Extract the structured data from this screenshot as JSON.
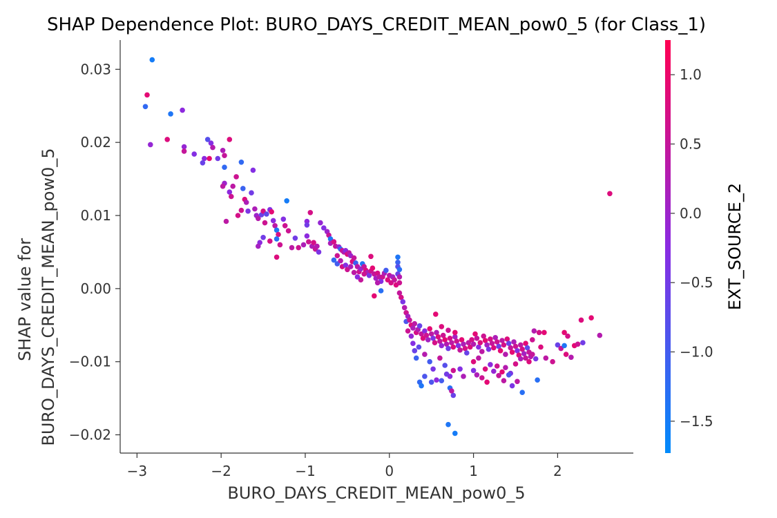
{
  "chart_data": {
    "type": "scatter",
    "title": "SHAP Dependence Plot: BURO_DAYS_CREDIT_MEAN_pow0_5 (for Class_1)",
    "xlabel": "BURO_DAYS_CREDIT_MEAN_pow0_5",
    "ylabel_lines": [
      "SHAP value for",
      "BURO_DAYS_CREDIT_MEAN_pow0_5"
    ],
    "xlim": [
      -3.2,
      2.9
    ],
    "ylim": [
      -0.0225,
      0.034
    ],
    "x_ticks": [
      -3,
      -2,
      -1,
      0,
      1,
      2
    ],
    "x_tick_labels": [
      "−3",
      "−2",
      "−1",
      "0",
      "1",
      "2"
    ],
    "y_ticks": [
      0.03,
      0.02,
      0.01,
      0.0,
      -0.01,
      -0.02
    ],
    "y_tick_labels": [
      "0.03",
      "0.02",
      "0.01",
      "0.00",
      "−0.01",
      "−0.02"
    ],
    "colorbar": {
      "label": "EXT_SOURCE_2",
      "range": [
        -1.73,
        1.25
      ],
      "ticks": [
        1.0,
        0.5,
        0.0,
        -0.5,
        -1.0,
        -1.5
      ],
      "tick_labels": [
        "1.0",
        "0.5",
        "0.0",
        "−0.5",
        "−1.0",
        "−1.5"
      ],
      "colormap": [
        "#008bfb",
        "#8a2be2",
        "#ff0052"
      ]
    },
    "grid": false,
    "points": [
      [
        -2.82,
        0.0313,
        -1.5
      ],
      [
        -2.88,
        0.0265,
        0.9
      ],
      [
        -2.9,
        0.0249,
        -1.2
      ],
      [
        -2.6,
        0.0239,
        -1.4
      ],
      [
        -2.46,
        0.0244,
        -0.2
      ],
      [
        -2.84,
        0.0197,
        -0.1
      ],
      [
        -2.64,
        0.0204,
        0.8
      ],
      [
        -2.44,
        0.0194,
        -0.1
      ],
      [
        -2.44,
        0.0188,
        0.5
      ],
      [
        -2.32,
        0.0184,
        -0.3
      ],
      [
        -2.2,
        0.0178,
        -0.2
      ],
      [
        -2.22,
        0.0172,
        -0.6
      ],
      [
        -2.16,
        0.0204,
        -0.8
      ],
      [
        -2.12,
        0.0199,
        -0.3
      ],
      [
        -2.1,
        0.0193,
        0.3
      ],
      [
        -2.14,
        0.0178,
        0.9
      ],
      [
        -2.04,
        0.0178,
        -0.5
      ],
      [
        -1.98,
        0.0189,
        0.2
      ],
      [
        -1.96,
        0.0182,
        0.5
      ],
      [
        -1.96,
        0.0166,
        -1.2
      ],
      [
        -1.9,
        0.0204,
        0.8
      ],
      [
        -1.76,
        0.0173,
        -1.2
      ],
      [
        -1.62,
        0.0162,
        -0.3
      ],
      [
        -1.82,
        0.0153,
        0.6
      ],
      [
        -1.96,
        0.0144,
        0.0
      ],
      [
        -1.98,
        0.014,
        0.4
      ],
      [
        -1.86,
        0.014,
        0.4
      ],
      [
        -1.9,
        0.0132,
        -0.2
      ],
      [
        -1.88,
        0.0126,
        0.6
      ],
      [
        -1.74,
        0.0137,
        -1.1
      ],
      [
        -1.64,
        0.0131,
        -0.5
      ],
      [
        -1.72,
        0.0122,
        0.8
      ],
      [
        -1.7,
        0.0118,
        0.2
      ],
      [
        -1.76,
        0.0107,
        0.6
      ],
      [
        -1.8,
        0.01,
        0.7
      ],
      [
        -1.94,
        0.0092,
        0.4
      ],
      [
        -1.68,
        0.0106,
        -0.4
      ],
      [
        -1.6,
        0.0109,
        0.2
      ],
      [
        -1.58,
        0.01,
        0.0
      ],
      [
        -1.52,
        0.0101,
        -0.6
      ],
      [
        -1.5,
        0.0106,
        0.7
      ],
      [
        -1.46,
        0.0102,
        -0.7
      ],
      [
        -1.42,
        0.0108,
        -0.3
      ],
      [
        -1.4,
        0.0105,
        0.9
      ],
      [
        -1.56,
        0.0096,
        0.3
      ],
      [
        -1.48,
        0.009,
        0.6
      ],
      [
        -1.38,
        0.0093,
        -0.2
      ],
      [
        -1.36,
        0.0086,
        0.4
      ],
      [
        -1.34,
        0.008,
        -1.4
      ],
      [
        -1.22,
        0.012,
        -1.5
      ],
      [
        -1.26,
        0.0095,
        -0.3
      ],
      [
        -1.24,
        0.0086,
        0.6
      ],
      [
        -1.2,
        0.0079,
        0.6
      ],
      [
        -1.32,
        0.0074,
        0.7
      ],
      [
        -1.34,
        0.0068,
        -1.3
      ],
      [
        -1.42,
        0.0065,
        0.7
      ],
      [
        -1.5,
        0.007,
        -0.5
      ],
      [
        -1.54,
        0.0063,
        -0.2
      ],
      [
        -1.56,
        0.0058,
        0.1
      ],
      [
        -1.3,
        0.006,
        0.6
      ],
      [
        -1.34,
        0.0043,
        0.8
      ],
      [
        -1.16,
        0.0056,
        0.4
      ],
      [
        -1.12,
        0.0069,
        -0.5
      ],
      [
        -1.08,
        0.0056,
        0.6
      ],
      [
        -1.02,
        0.006,
        0.2
      ],
      [
        -0.98,
        0.0072,
        -0.2
      ],
      [
        -0.96,
        0.0064,
        0.6
      ],
      [
        -0.92,
        0.0058,
        0.2
      ],
      [
        -0.9,
        0.0063,
        0.7
      ],
      [
        -0.88,
        0.0054,
        0.5
      ],
      [
        -0.86,
        0.0058,
        0.3
      ],
      [
        -0.84,
        0.005,
        -0.4
      ],
      [
        -0.98,
        0.0092,
        -0.2
      ],
      [
        -0.98,
        0.0087,
        -0.5
      ],
      [
        -0.94,
        0.0104,
        0.7
      ],
      [
        -0.82,
        0.009,
        -0.1
      ],
      [
        -0.78,
        0.0083,
        -0.3
      ],
      [
        -0.74,
        0.0078,
        0.0
      ],
      [
        -0.72,
        0.0073,
        0.5
      ],
      [
        -0.7,
        0.0068,
        -1.4
      ],
      [
        -0.7,
        0.0062,
        0.2
      ],
      [
        -0.66,
        0.0064,
        0.7
      ],
      [
        -0.64,
        0.0058,
        0.5
      ],
      [
        -0.6,
        0.0057,
        -0.1
      ],
      [
        -0.58,
        0.0054,
        -1.2
      ],
      [
        -0.56,
        0.0052,
        0.6
      ],
      [
        -0.54,
        0.005,
        0.3
      ],
      [
        -0.52,
        0.0052,
        -0.2
      ],
      [
        -0.5,
        0.0047,
        0.8
      ],
      [
        -0.48,
        0.0049,
        0.4
      ],
      [
        -0.46,
        0.0045,
        0.0
      ],
      [
        -0.62,
        0.0045,
        0.6
      ],
      [
        -0.66,
        0.0039,
        -1.2
      ],
      [
        -0.62,
        0.0034,
        -1.0
      ],
      [
        -0.58,
        0.0038,
        0.3
      ],
      [
        -0.56,
        0.003,
        0.7
      ],
      [
        -0.52,
        0.0032,
        -0.3
      ],
      [
        -0.5,
        0.0026,
        0.6
      ],
      [
        -0.46,
        0.003,
        0.2
      ],
      [
        -0.44,
        0.0037,
        0.8
      ],
      [
        -0.42,
        0.0042,
        0.5
      ],
      [
        -0.4,
        0.0035,
        -1.1
      ],
      [
        -0.38,
        0.003,
        0.4
      ],
      [
        -0.36,
        0.0023,
        0.6
      ],
      [
        -0.34,
        0.0027,
        0.0
      ],
      [
        -0.32,
        0.0034,
        -1.4
      ],
      [
        -0.3,
        0.003,
        0.5
      ],
      [
        -0.28,
        0.0025,
        0.8
      ],
      [
        -0.26,
        0.0022,
        0.2
      ],
      [
        -0.24,
        0.0018,
        -0.4
      ],
      [
        -0.22,
        0.0024,
        0.6
      ],
      [
        -0.2,
        0.0028,
        0.9
      ],
      [
        -0.18,
        0.002,
        0.5
      ],
      [
        -0.16,
        0.0014,
        0.1
      ],
      [
        -0.14,
        0.0021,
        0.7
      ],
      [
        -0.12,
        0.0016,
        0.4
      ],
      [
        -0.1,
        0.001,
        -0.3
      ],
      [
        -0.08,
        0.0016,
        0.6
      ],
      [
        -0.06,
        0.0021,
        0.2
      ],
      [
        -0.04,
        0.0025,
        -1.0
      ],
      [
        -0.02,
        0.0012,
        0.8
      ],
      [
        0.0,
        0.0018,
        0.4
      ],
      [
        0.02,
        0.0008,
        0.7
      ],
      [
        0.04,
        0.0016,
        0.1
      ],
      [
        0.06,
        0.0012,
        0.5
      ],
      [
        0.08,
        0.0005,
        0.8
      ],
      [
        0.1,
        0.0043,
        -1.4
      ],
      [
        0.1,
        0.0036,
        -1.1
      ],
      [
        0.1,
        0.003,
        -0.8
      ],
      [
        0.12,
        0.0026,
        -1.3
      ],
      [
        0.1,
        0.002,
        -0.6
      ],
      [
        0.12,
        0.0016,
        0.3
      ],
      [
        0.12,
        0.0008,
        0.6
      ],
      [
        -0.22,
        0.0044,
        0.8
      ],
      [
        -0.14,
        0.0008,
        0.3
      ],
      [
        -0.18,
        -0.001,
        0.9
      ],
      [
        -0.1,
        -0.0003,
        -1.3
      ],
      [
        -0.3,
        0.002,
        0.6
      ],
      [
        -0.34,
        0.0012,
        0.5
      ],
      [
        -0.38,
        0.0016,
        -0.2
      ],
      [
        -0.42,
        0.0022,
        0.4
      ],
      [
        0.12,
        -0.0006,
        0.5
      ],
      [
        0.14,
        -0.0012,
        0.7
      ],
      [
        0.16,
        -0.0018,
        -0.4
      ],
      [
        0.18,
        -0.0026,
        0.3
      ],
      [
        0.2,
        -0.0033,
        0.6
      ],
      [
        0.22,
        -0.0038,
        0.1
      ],
      [
        0.2,
        -0.0045,
        -0.9
      ],
      [
        0.24,
        -0.0043,
        0.5
      ],
      [
        0.26,
        -0.005,
        0.8
      ],
      [
        0.28,
        -0.0054,
        0.2
      ],
      [
        0.3,
        -0.0048,
        0.4
      ],
      [
        0.22,
        -0.0058,
        0.6
      ],
      [
        0.26,
        -0.0065,
        -0.1
      ],
      [
        0.32,
        -0.006,
        0.7
      ],
      [
        0.34,
        -0.0056,
        0.3
      ],
      [
        0.36,
        -0.0051,
        -0.6
      ],
      [
        0.38,
        -0.0062,
        0.5
      ],
      [
        0.4,
        -0.0068,
        0.8
      ],
      [
        0.42,
        -0.0058,
        -0.2
      ],
      [
        0.44,
        -0.0064,
        0.6
      ],
      [
        0.46,
        -0.007,
        0.1
      ],
      [
        0.48,
        -0.0055,
        0.9
      ],
      [
        0.5,
        -0.0062,
        0.4
      ],
      [
        0.52,
        -0.0068,
        -0.4
      ],
      [
        0.54,
        -0.0074,
        0.7
      ],
      [
        0.56,
        -0.006,
        0.2
      ],
      [
        0.58,
        -0.0066,
        0.8
      ],
      [
        0.6,
        -0.0072,
        0.5
      ],
      [
        0.62,
        -0.0078,
        -0.1
      ],
      [
        0.64,
        -0.0064,
        0.6
      ],
      [
        0.66,
        -0.007,
        0.9
      ],
      [
        0.68,
        -0.0076,
        0.3
      ],
      [
        0.7,
        -0.0082,
        -0.5
      ],
      [
        0.72,
        -0.0068,
        0.7
      ],
      [
        0.74,
        -0.0074,
        0.4
      ],
      [
        0.76,
        -0.008,
        0.8
      ],
      [
        0.78,
        -0.0066,
        0.1
      ],
      [
        0.8,
        -0.0072,
        0.6
      ],
      [
        0.82,
        -0.0078,
        -0.3
      ],
      [
        0.84,
        -0.0084,
        0.5
      ],
      [
        0.86,
        -0.007,
        0.9
      ],
      [
        0.88,
        -0.0076,
        0.2
      ],
      [
        0.9,
        -0.0082,
        0.7
      ],
      [
        0.92,
        -0.0088,
        -0.6
      ],
      [
        0.94,
        -0.0074,
        0.4
      ],
      [
        0.96,
        -0.008,
        0.8
      ],
      [
        0.55,
        -0.0035,
        0.9
      ],
      [
        0.62,
        -0.0052,
        0.8
      ],
      [
        0.7,
        -0.0057,
        0.6
      ],
      [
        0.78,
        -0.006,
        0.9
      ],
      [
        0.35,
        -0.008,
        -0.7
      ],
      [
        0.42,
        -0.009,
        0.3
      ],
      [
        0.48,
        -0.01,
        -1.0
      ],
      [
        0.52,
        -0.011,
        -0.4
      ],
      [
        0.6,
        -0.0095,
        0.5
      ],
      [
        0.66,
        -0.0105,
        -0.8
      ],
      [
        0.72,
        -0.012,
        -0.2
      ],
      [
        0.76,
        -0.0112,
        0.6
      ],
      [
        0.42,
        -0.012,
        -0.9
      ],
      [
        0.36,
        -0.0128,
        -1.2
      ],
      [
        0.38,
        -0.0133,
        -1.4
      ],
      [
        0.5,
        -0.0128,
        -0.9
      ],
      [
        0.56,
        -0.0125,
        -0.2
      ],
      [
        0.62,
        -0.0126,
        -1.0
      ],
      [
        0.68,
        -0.0117,
        -0.5
      ],
      [
        0.72,
        -0.0136,
        -1.3
      ],
      [
        0.76,
        -0.0146,
        -0.6
      ],
      [
        0.74,
        -0.014,
        0.4
      ],
      [
        0.84,
        -0.011,
        -0.3
      ],
      [
        0.88,
        -0.012,
        0.2
      ],
      [
        0.7,
        -0.0186,
        -1.4
      ],
      [
        0.78,
        -0.0198,
        -1.5
      ],
      [
        0.28,
        -0.0075,
        -0.3
      ],
      [
        0.3,
        -0.0085,
        -0.6
      ],
      [
        0.32,
        -0.0095,
        -1.1
      ],
      [
        0.98,
        -0.007,
        0.7
      ],
      [
        1.0,
        -0.0076,
        0.3
      ],
      [
        1.02,
        -0.0062,
        0.9
      ],
      [
        1.04,
        -0.0068,
        0.5
      ],
      [
        1.06,
        -0.008,
        -0.2
      ],
      [
        1.08,
        -0.0074,
        0.8
      ],
      [
        1.1,
        -0.0086,
        0.4
      ],
      [
        1.12,
        -0.0065,
        0.6
      ],
      [
        1.14,
        -0.0071,
        0.9
      ],
      [
        1.16,
        -0.0077,
        0.1
      ],
      [
        1.18,
        -0.0083,
        -0.4
      ],
      [
        1.2,
        -0.0069,
        0.7
      ],
      [
        1.22,
        -0.0075,
        0.5
      ],
      [
        1.24,
        -0.0081,
        0.8
      ],
      [
        1.26,
        -0.0067,
        0.2
      ],
      [
        1.28,
        -0.0073,
        0.6
      ],
      [
        1.3,
        -0.0079,
        -0.5
      ],
      [
        1.32,
        -0.0085,
        0.9
      ],
      [
        1.34,
        -0.0071,
        0.4
      ],
      [
        1.36,
        -0.0077,
        0.7
      ],
      [
        1.38,
        -0.009,
        0.3
      ],
      [
        1.4,
        -0.0069,
        0.8
      ],
      [
        1.42,
        -0.0075,
        -0.6
      ],
      [
        1.44,
        -0.0081,
        0.5
      ],
      [
        1.46,
        -0.0087,
        0.9
      ],
      [
        1.48,
        -0.0073,
        0.2
      ],
      [
        1.5,
        -0.0079,
        0.6
      ],
      [
        1.52,
        -0.0085,
        -0.3
      ],
      [
        1.54,
        -0.0091,
        0.8
      ],
      [
        1.56,
        -0.0077,
        0.4
      ],
      [
        1.58,
        -0.0083,
        0.7
      ],
      [
        1.6,
        -0.0089,
        0.1
      ],
      [
        1.62,
        -0.0075,
        0.9
      ],
      [
        1.64,
        -0.0081,
        -0.7
      ],
      [
        1.66,
        -0.0087,
        0.5
      ],
      [
        1.68,
        -0.0093,
        0.3
      ],
      [
        1.0,
        -0.01,
        0.8
      ],
      [
        1.06,
        -0.0095,
        0.4
      ],
      [
        1.14,
        -0.011,
        0.8
      ],
      [
        1.2,
        -0.0104,
        -0.2
      ],
      [
        1.28,
        -0.0106,
        0.6
      ],
      [
        1.34,
        -0.0114,
        0.9
      ],
      [
        1.38,
        -0.0108,
        0.3
      ],
      [
        1.44,
        -0.0116,
        -0.4
      ],
      [
        1.5,
        -0.0103,
        0.7
      ],
      [
        1.56,
        -0.0096,
        0.2
      ],
      [
        1.62,
        -0.0095,
        0.5
      ],
      [
        1.66,
        -0.01,
        0.8
      ],
      [
        1.0,
        -0.0112,
        -0.3
      ],
      [
        1.04,
        -0.0118,
        0.2
      ],
      [
        1.1,
        -0.0122,
        0.6
      ],
      [
        1.16,
        -0.0128,
        0.9
      ],
      [
        1.24,
        -0.0113,
        -0.1
      ],
      [
        1.3,
        -0.0119,
        0.5
      ],
      [
        1.36,
        -0.0126,
        0.4
      ],
      [
        1.42,
        -0.0118,
        -0.9
      ],
      [
        1.46,
        -0.0133,
        -0.4
      ],
      [
        1.52,
        -0.0127,
        0.4
      ],
      [
        1.58,
        -0.0142,
        -1.3
      ],
      [
        1.76,
        -0.0125,
        -1.3
      ],
      [
        1.7,
        -0.007,
        0.6
      ],
      [
        1.72,
        -0.0058,
        0.3
      ],
      [
        1.78,
        -0.006,
        0.7
      ],
      [
        1.84,
        -0.006,
        0.9
      ],
      [
        1.7,
        -0.009,
        0.5
      ],
      [
        1.74,
        -0.0096,
        -0.4
      ],
      [
        1.8,
        -0.008,
        0.8
      ],
      [
        1.86,
        -0.0095,
        0.4
      ],
      [
        1.94,
        -0.01,
        0.6
      ],
      [
        2.0,
        -0.0077,
        -0.6
      ],
      [
        2.04,
        -0.0082,
        0.5
      ],
      [
        2.08,
        -0.0078,
        -1.4
      ],
      [
        2.1,
        -0.009,
        0.8
      ],
      [
        2.16,
        -0.0094,
        0.3
      ],
      [
        2.2,
        -0.0078,
        0.9
      ],
      [
        2.24,
        -0.0076,
        0.6
      ],
      [
        2.3,
        -0.0074,
        -0.5
      ],
      [
        2.28,
        -0.0043,
        0.8
      ],
      [
        2.4,
        -0.004,
        0.9
      ],
      [
        2.5,
        -0.0064,
        0.3
      ],
      [
        2.62,
        0.013,
        0.8
      ],
      [
        2.08,
        -0.006,
        0.9
      ],
      [
        2.12,
        -0.0065,
        0.7
      ]
    ]
  }
}
